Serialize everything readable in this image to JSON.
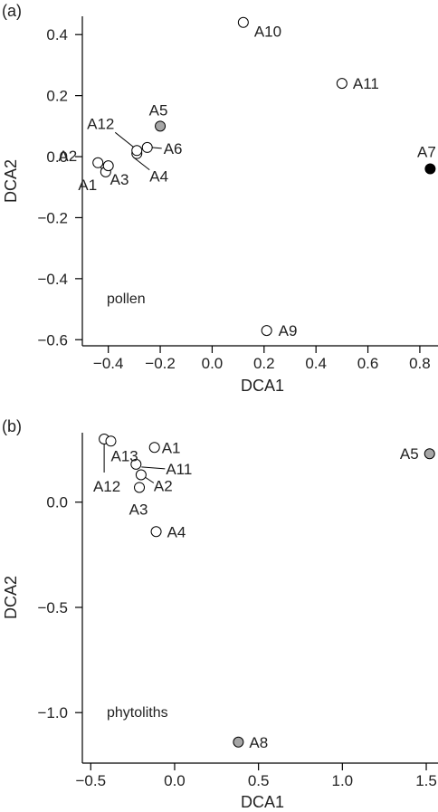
{
  "chart_data": [
    {
      "panel": "(a)",
      "type": "scatter",
      "xlabel": "DCA1",
      "ylabel": "DCA2",
      "annotation": "pollen",
      "xlim": [
        -0.5,
        0.87
      ],
      "ylim": [
        -0.62,
        0.46
      ],
      "xticks": [
        -0.4,
        -0.2,
        0.0,
        0.2,
        0.4,
        0.6,
        0.8
      ],
      "xtick_labels": [
        "−0.4",
        "−0.2",
        "0.0",
        "0.2",
        "0.4",
        "0.6",
        "0.8"
      ],
      "yticks": [
        -0.6,
        -0.4,
        -0.2,
        0.0,
        0.2,
        0.4
      ],
      "ytick_labels": [
        "−0.6",
        "−0.4",
        "−0.2",
        "0.0",
        "0.2",
        "0.4"
      ],
      "points": [
        {
          "label": "A1",
          "x": -0.41,
          "y": -0.05,
          "fill": "white"
        },
        {
          "label": "A2",
          "x": -0.44,
          "y": -0.02,
          "fill": "white"
        },
        {
          "label": "A3",
          "x": -0.4,
          "y": -0.03,
          "fill": "white"
        },
        {
          "label": "A4",
          "x": -0.29,
          "y": 0.01,
          "fill": "white"
        },
        {
          "label": "A5",
          "x": -0.2,
          "y": 0.1,
          "fill": "gray"
        },
        {
          "label": "A6",
          "x": -0.25,
          "y": 0.03,
          "fill": "white"
        },
        {
          "label": "A7",
          "x": 0.84,
          "y": -0.04,
          "fill": "black"
        },
        {
          "label": "A9",
          "x": 0.21,
          "y": -0.57,
          "fill": "white"
        },
        {
          "label": "A10",
          "x": 0.12,
          "y": 0.44,
          "fill": "white"
        },
        {
          "label": "A11",
          "x": 0.5,
          "y": 0.24,
          "fill": "white"
        },
        {
          "label": "A12",
          "x": -0.29,
          "y": 0.02,
          "fill": "white"
        }
      ]
    },
    {
      "panel": "(b)",
      "type": "scatter",
      "xlabel": "DCA1",
      "ylabel": "DCA2",
      "annotation": "phytoliths",
      "xlim": [
        -0.55,
        1.57
      ],
      "ylim": [
        -1.24,
        0.33
      ],
      "xticks": [
        -0.5,
        0.0,
        0.5,
        1.0,
        1.5
      ],
      "xtick_labels": [
        "−0.5",
        "0.0",
        "0.5",
        "1.0",
        "1.5"
      ],
      "yticks": [
        -1.0,
        -0.5,
        0.0
      ],
      "ytick_labels": [
        "−1.0",
        "−0.5",
        "0.0"
      ],
      "points": [
        {
          "label": "A1",
          "x": -0.12,
          "y": 0.26,
          "fill": "white"
        },
        {
          "label": "A2",
          "x": -0.2,
          "y": 0.13,
          "fill": "white"
        },
        {
          "label": "A3",
          "x": -0.21,
          "y": 0.07,
          "fill": "white"
        },
        {
          "label": "A4",
          "x": -0.11,
          "y": -0.14,
          "fill": "white"
        },
        {
          "label": "A5",
          "x": 1.52,
          "y": 0.23,
          "fill": "gray"
        },
        {
          "label": "A8",
          "x": 0.38,
          "y": -1.14,
          "fill": "gray"
        },
        {
          "label": "A11",
          "x": -0.23,
          "y": 0.18,
          "fill": "white"
        },
        {
          "label": "A12",
          "x": -0.42,
          "y": 0.3,
          "fill": "white"
        },
        {
          "label": "A13",
          "x": -0.38,
          "y": 0.29,
          "fill": "white"
        }
      ]
    }
  ],
  "colors": {
    "white": "#ffffff",
    "gray": "#a6a6a6",
    "black": "#000000"
  }
}
